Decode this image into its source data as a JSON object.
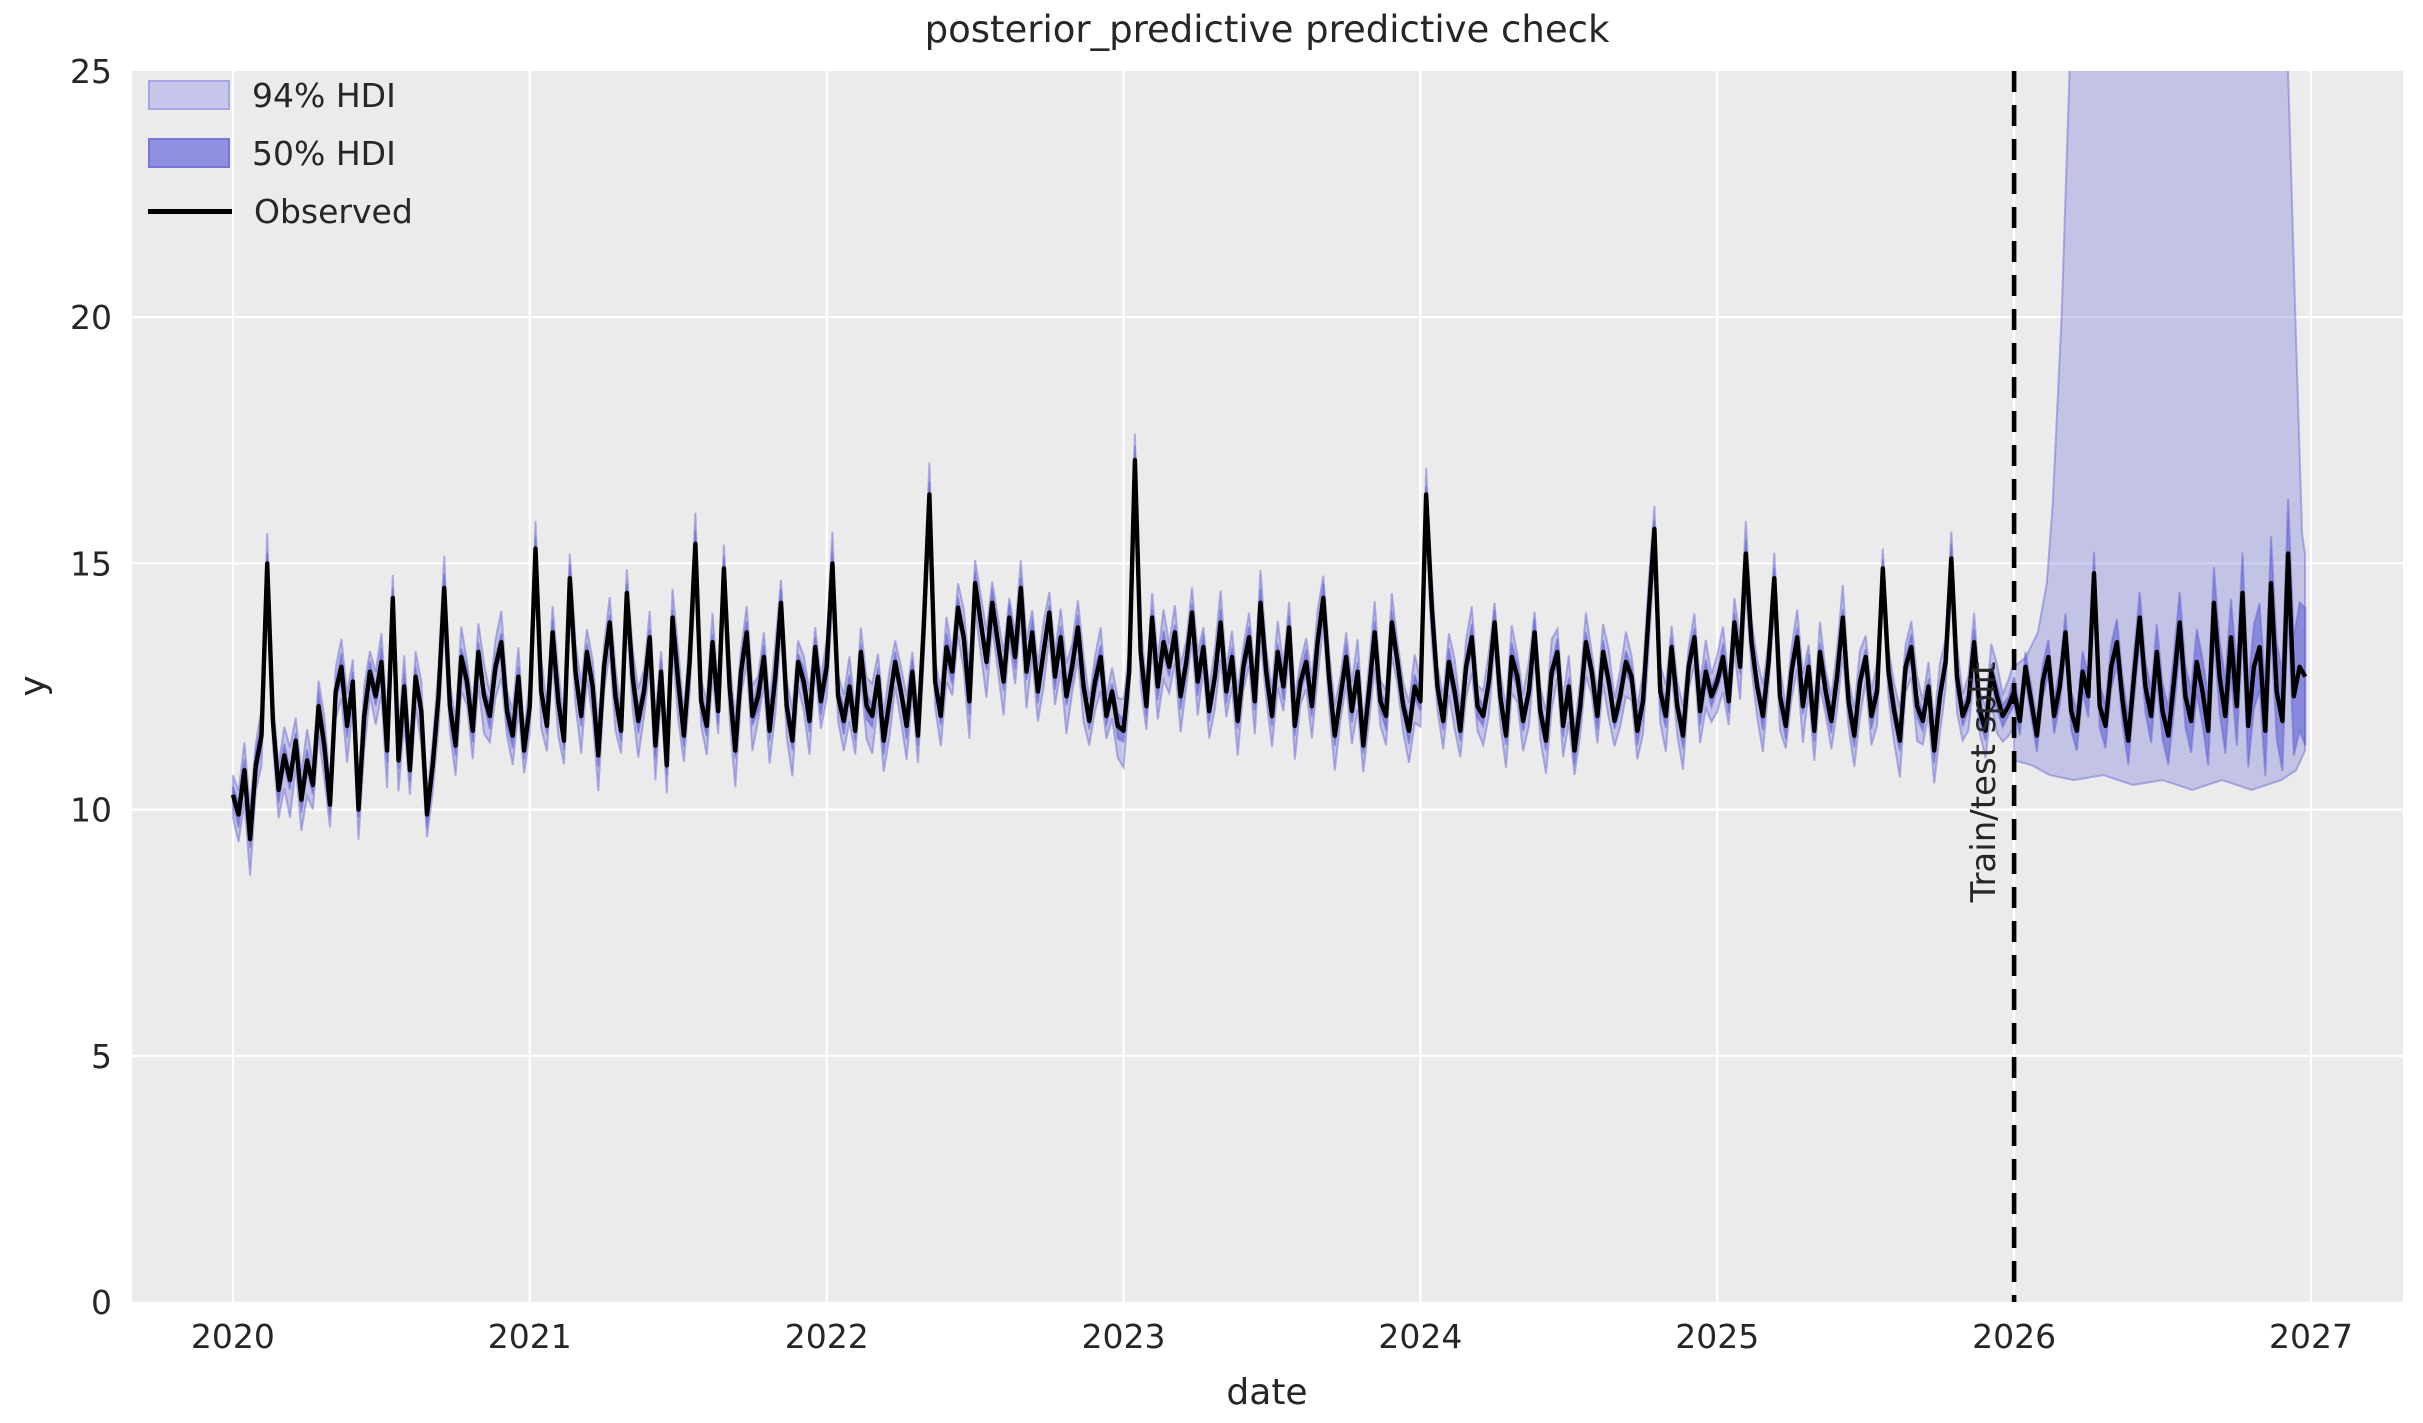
{
  "title": "posterior_predictive predictive check",
  "axis": {
    "xlabel": "date",
    "ylabel": "y"
  },
  "legend": {
    "items": [
      {
        "label": "94% HDI",
        "swatch": "patch-light"
      },
      {
        "label": "50% HDI",
        "swatch": "patch-dark"
      },
      {
        "label": "Observed",
        "swatch": "line-black"
      }
    ]
  },
  "annotation": {
    "text": "Train/test split",
    "x": 2026.0
  },
  "colors": {
    "figure_bg": "#ffffff",
    "axes_bg": "#ebebeb",
    "grid": "#ffffff",
    "observed_line": "#000000",
    "hdi94_fill": "rgba(108,108,216,0.31)",
    "hdi50_fill": "rgba(88,88,214,0.55)",
    "band_edge": "rgba(98,98,210,0.45)",
    "split_line": "#000000",
    "text": "#262626"
  },
  "chart_data": {
    "type": "line",
    "title": "posterior_predictive predictive check",
    "xlabel": "date",
    "ylabel": "y",
    "xlim": [
      2019.66,
      2027.31
    ],
    "ylim": [
      0,
      25
    ],
    "xticks": [
      2020,
      2021,
      2022,
      2023,
      2024,
      2025,
      2026,
      2027
    ],
    "yticks": [
      0,
      5,
      10,
      15,
      20,
      25
    ],
    "grid": true,
    "legend_position": "upper left",
    "train_test_split_x": 2026.0,
    "x_start": 2020.0,
    "x_step_years": 0.0192307692,
    "observed": [
      10.3,
      9.9,
      10.8,
      9.4,
      10.9,
      11.5,
      15.0,
      11.8,
      10.4,
      11.1,
      10.6,
      11.4,
      10.2,
      11.0,
      10.5,
      12.1,
      11.3,
      10.1,
      12.4,
      12.9,
      11.7,
      12.6,
      10.0,
      11.9,
      12.8,
      12.3,
      13.0,
      11.2,
      14.3,
      11.0,
      12.5,
      10.8,
      12.7,
      12.0,
      9.9,
      10.9,
      12.3,
      14.5,
      12.1,
      11.3,
      13.1,
      12.6,
      11.6,
      13.2,
      12.3,
      11.9,
      12.9,
      13.4,
      12.0,
      11.5,
      12.7,
      11.2,
      12.1,
      15.3,
      12.4,
      11.7,
      13.6,
      12.2,
      11.4,
      14.7,
      12.8,
      11.9,
      13.2,
      12.5,
      11.1,
      12.9,
      13.8,
      12.3,
      11.6,
      14.4,
      12.7,
      11.8,
      12.4,
      13.5,
      11.3,
      12.8,
      10.9,
      13.9,
      12.6,
      11.5,
      13.0,
      15.4,
      12.2,
      11.7,
      13.4,
      12.0,
      14.9,
      12.5,
      11.2,
      12.8,
      13.6,
      11.9,
      12.3,
      13.1,
      11.6,
      12.7,
      14.2,
      12.1,
      11.4,
      13.0,
      12.6,
      11.8,
      13.3,
      12.2,
      12.9,
      15.0,
      12.3,
      11.8,
      12.5,
      11.6,
      13.2,
      12.1,
      11.9,
      12.7,
      11.4,
      12.2,
      13.0,
      12.4,
      11.7,
      12.8,
      11.5,
      13.7,
      16.4,
      12.6,
      11.9,
      13.3,
      12.8,
      14.1,
      13.5,
      12.2,
      14.6,
      13.8,
      13.0,
      14.2,
      13.4,
      12.6,
      13.9,
      13.1,
      14.5,
      12.8,
      13.6,
      12.4,
      13.2,
      14.0,
      12.7,
      13.5,
      12.3,
      12.9,
      13.7,
      12.5,
      11.8,
      12.6,
      13.1,
      11.9,
      12.4,
      11.7,
      11.6,
      12.8,
      17.1,
      13.2,
      12.1,
      13.9,
      12.5,
      13.4,
      12.9,
      13.6,
      12.3,
      13.0,
      14.0,
      12.6,
      13.3,
      12.0,
      12.7,
      13.8,
      12.4,
      13.1,
      11.8,
      12.9,
      13.5,
      12.2,
      14.2,
      12.8,
      11.9,
      13.2,
      12.5,
      13.7,
      11.7,
      12.6,
      13.0,
      12.1,
      13.4,
      14.3,
      12.7,
      11.5,
      12.3,
      13.1,
      12.0,
      12.8,
      11.3,
      12.4,
      13.6,
      12.2,
      11.9,
      13.8,
      13.0,
      12.1,
      11.6,
      12.5,
      12.2,
      16.4,
      14.1,
      12.5,
      11.8,
      13.0,
      12.4,
      11.6,
      12.9,
      13.5,
      12.1,
      11.9,
      12.6,
      13.8,
      12.3,
      11.5,
      13.1,
      12.7,
      11.8,
      12.4,
      13.6,
      12.0,
      11.4,
      12.8,
      13.2,
      11.7,
      12.5,
      11.2,
      12.1,
      13.4,
      12.8,
      11.9,
      13.2,
      12.6,
      11.8,
      12.3,
      13.0,
      12.7,
      11.6,
      12.2,
      14.0,
      15.7,
      12.4,
      11.9,
      13.3,
      12.1,
      11.5,
      12.9,
      13.5,
      12.0,
      12.8,
      12.3,
      12.6,
      13.1,
      12.2,
      13.8,
      12.9,
      15.2,
      13.4,
      12.5,
      11.9,
      13.0,
      14.7,
      12.3,
      11.7,
      12.8,
      13.5,
      12.1,
      12.9,
      11.6,
      13.2,
      12.4,
      11.8,
      12.7,
      13.9,
      12.2,
      11.5,
      12.6,
      13.1,
      11.9,
      12.4,
      14.9,
      12.8,
      12.0,
      11.4,
      12.9,
      13.3,
      12.1,
      11.8,
      12.5,
      11.2,
      12.3,
      13.0,
      15.1,
      12.7,
      11.9,
      12.2,
      13.4,
      12.0,
      11.6,
      12.8,
      12.3,
      11.9,
      12.1,
      12.4,
      11.8,
      12.9,
      12.2,
      11.5,
      12.6,
      13.1,
      11.9,
      12.5,
      13.6,
      12.0,
      11.6,
      12.8,
      12.3,
      14.8,
      12.1,
      11.7,
      12.9,
      13.4,
      12.2,
      11.4,
      12.7,
      13.9,
      12.5,
      11.9,
      13.2,
      12.0,
      11.5,
      12.6,
      13.8,
      12.3,
      11.8,
      13.0,
      12.4,
      11.6,
      14.2,
      12.7,
      11.9,
      13.5,
      12.1,
      14.4,
      11.7,
      12.9,
      13.3,
      11.6,
      14.6,
      12.4,
      11.8,
      15.2,
      12.3,
      12.9,
      12.7
    ],
    "hdi94": {
      "train_halfwidth": [
        0.4,
        0.68
      ],
      "test_upper_points": [
        [
          2026.0,
          12.9
        ],
        [
          2026.04,
          13.1
        ],
        [
          2026.08,
          13.6
        ],
        [
          2026.11,
          14.6
        ],
        [
          2026.13,
          16.2
        ],
        [
          2026.16,
          20.0
        ],
        [
          2026.19,
          25.6
        ],
        [
          2026.28,
          34.0
        ],
        [
          2026.45,
          41.0
        ],
        [
          2026.65,
          42.0
        ],
        [
          2026.8,
          38.0
        ],
        [
          2026.88,
          30.0
        ],
        [
          2026.92,
          25.6
        ],
        [
          2026.95,
          19.5
        ],
        [
          2026.97,
          15.6
        ],
        [
          2026.98,
          15.2
        ]
      ],
      "test_lower_points": [
        [
          2026.0,
          11.0
        ],
        [
          2026.06,
          10.9
        ],
        [
          2026.12,
          10.7
        ],
        [
          2026.2,
          10.6
        ],
        [
          2026.3,
          10.7
        ],
        [
          2026.4,
          10.5
        ],
        [
          2026.5,
          10.6
        ],
        [
          2026.6,
          10.4
        ],
        [
          2026.7,
          10.6
        ],
        [
          2026.8,
          10.4
        ],
        [
          2026.9,
          10.6
        ],
        [
          2026.95,
          10.8
        ],
        [
          2026.98,
          11.2
        ]
      ]
    },
    "hdi50": {
      "train_halfwidth": [
        0.16,
        0.3
      ],
      "test_halfwidth_points": [
        [
          2026.0,
          0.28
        ],
        [
          2026.2,
          0.4
        ],
        [
          2026.4,
          0.5
        ],
        [
          2026.6,
          0.65
        ],
        [
          2026.8,
          0.85
        ],
        [
          2026.9,
          1.0
        ],
        [
          2026.98,
          1.4
        ]
      ]
    }
  }
}
